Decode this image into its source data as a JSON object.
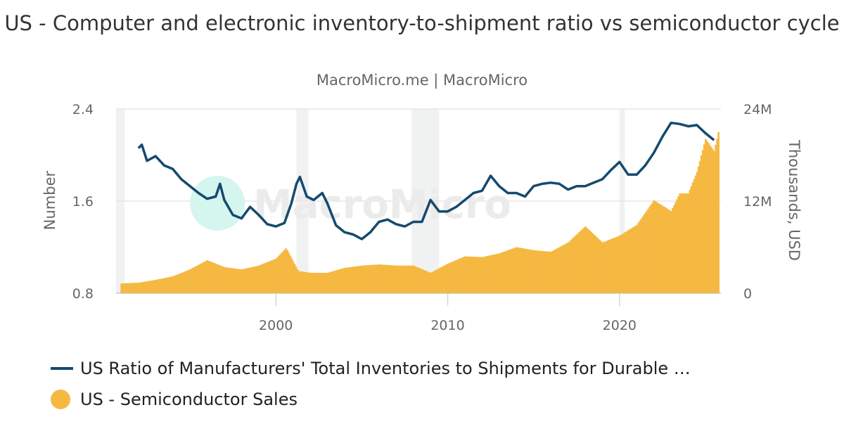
{
  "chart_data": {
    "type": "line+bar",
    "title": "US - Computer and electronic inventory-to-shipment ratio vs semiconductor cycle",
    "subtitle": "MacroMicro.me | MacroMicro",
    "watermark": "MacroMicro",
    "xlim": [
      1990.7,
      2025.9
    ],
    "x_ticks": [
      "2000",
      "2010",
      "2020"
    ],
    "y_left": {
      "label": "Number",
      "lim": [
        0.8,
        2.4
      ],
      "ticks": [
        "0.8",
        "1.6",
        "2.4"
      ]
    },
    "y_right": {
      "label": "Thousands, USD",
      "lim": [
        0,
        24
      ],
      "ticks": [
        "0",
        "12M",
        "24M"
      ]
    },
    "grid": true,
    "legend_position": "bottom",
    "recessions": [
      [
        1990.7,
        1991.2
      ],
      [
        2001.2,
        2001.9
      ],
      [
        2007.9,
        2009.5
      ],
      [
        2020.0,
        2020.3
      ]
    ],
    "series": [
      {
        "name": "US Ratio of Manufacturers' Total Inventories to Shipments for Durable …",
        "type": "line",
        "axis": "left",
        "color": "#154a6e",
        "x": [
          1992.0,
          1992.2,
          1992.5,
          1993.0,
          1993.5,
          1994.0,
          1994.5,
          1995.0,
          1995.5,
          1996.0,
          1996.5,
          1996.75,
          1997.0,
          1997.5,
          1998.0,
          1998.5,
          1999.0,
          1999.5,
          2000.0,
          2000.5,
          2000.9,
          2001.2,
          2001.4,
          2001.8,
          2002.2,
          2002.7,
          2003.0,
          2003.5,
          2004.0,
          2004.5,
          2005.0,
          2005.5,
          2006.0,
          2006.5,
          2007.0,
          2007.5,
          2008.0,
          2008.5,
          2009.0,
          2009.5,
          2010.0,
          2010.5,
          2011.0,
          2011.5,
          2012.0,
          2012.5,
          2013.0,
          2013.5,
          2014.0,
          2014.5,
          2015.0,
          2015.5,
          2016.0,
          2016.5,
          2017.0,
          2017.5,
          2018.0,
          2018.5,
          2019.0,
          2019.5,
          2020.0,
          2020.5,
          2021.0,
          2021.5,
          2022.0,
          2022.5,
          2023.0,
          2023.5,
          2024.0,
          2024.5,
          2025.0,
          2025.5
        ],
        "y": [
          2.06,
          2.09,
          1.95,
          1.99,
          1.91,
          1.88,
          1.79,
          1.73,
          1.67,
          1.62,
          1.64,
          1.75,
          1.61,
          1.48,
          1.45,
          1.55,
          1.48,
          1.4,
          1.38,
          1.41,
          1.58,
          1.75,
          1.81,
          1.64,
          1.61,
          1.67,
          1.58,
          1.39,
          1.33,
          1.31,
          1.27,
          1.33,
          1.42,
          1.44,
          1.4,
          1.38,
          1.42,
          1.42,
          1.61,
          1.51,
          1.51,
          1.55,
          1.61,
          1.67,
          1.69,
          1.82,
          1.73,
          1.67,
          1.67,
          1.64,
          1.73,
          1.75,
          1.76,
          1.75,
          1.7,
          1.73,
          1.73,
          1.76,
          1.79,
          1.87,
          1.94,
          1.83,
          1.83,
          1.91,
          2.02,
          2.16,
          2.28,
          2.27,
          2.25,
          2.26,
          2.19,
          2.13
        ]
      },
      {
        "name": "US - Semiconductor Sales",
        "type": "bar",
        "axis": "right",
        "color": "#f5b942",
        "x": [
          1991.0,
          1992.0,
          1993.0,
          1994.0,
          1995.0,
          1996.0,
          1996.5,
          1997.0,
          1998.0,
          1999.0,
          2000.0,
          2000.6,
          2001.3,
          2002.0,
          2003.0,
          2004.0,
          2005.0,
          2006.0,
          2007.0,
          2008.0,
          2009.0,
          2010.0,
          2011.0,
          2012.0,
          2013.0,
          2014.0,
          2015.0,
          2016.0,
          2017.0,
          2018.0,
          2019.0,
          2020.0,
          2021.0,
          2022.0,
          2023.0,
          2023.5,
          2024.0,
          2024.5,
          2025.0,
          2025.5,
          2025.8
        ],
        "y": [
          1.28,
          1.37,
          1.74,
          2.2,
          3.1,
          4.3,
          3.85,
          3.4,
          3.1,
          3.6,
          4.5,
          5.9,
          2.9,
          2.66,
          2.66,
          3.3,
          3.6,
          3.75,
          3.6,
          3.6,
          2.66,
          3.85,
          4.8,
          4.7,
          5.2,
          6.0,
          5.6,
          5.4,
          6.6,
          8.7,
          6.6,
          7.5,
          8.9,
          12.1,
          10.7,
          13.0,
          13.0,
          15.8,
          20.1,
          18.5,
          21.5
        ]
      }
    ]
  }
}
